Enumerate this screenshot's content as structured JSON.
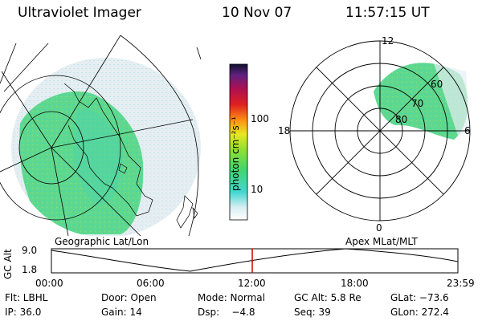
{
  "header": {
    "title": "Ultraviolet Imager",
    "date": "10 Nov 07",
    "time": "11:57:15 UT"
  },
  "colorbar": {
    "unit_label": "photon cm⁻²s⁻¹",
    "ticks": [
      "100",
      "10"
    ]
  },
  "polar": {
    "hour_labels": [
      "12",
      "18",
      "6",
      "0"
    ],
    "lat_labels": [
      "60",
      "70",
      "80"
    ]
  },
  "panel_labels": {
    "left": "Geographic Lat/Lon",
    "right": "Apex MLat/MLT"
  },
  "altitude_plot": {
    "ylabel": "GC Alt",
    "y_ticks": [
      "9.0",
      "1.8"
    ],
    "x_ticks": [
      "00:00",
      "06:00",
      "12:00",
      "18:00",
      "23:59"
    ],
    "marker_color": "#cc0000"
  },
  "info": {
    "row1": {
      "filter": "Flt: LBHL",
      "door": "Door: Open",
      "mode": "Mode: Normal",
      "gc_alt": "GC Alt: 5.8 Re",
      "glat": "GLat: −73.6"
    },
    "row2": {
      "ip": "IP: 36.0",
      "gain": "Gain: 14",
      "dsp": "Dsp:    −4.8",
      "seq": "Seq: 39",
      "glon": "GLon: 272.4"
    }
  }
}
